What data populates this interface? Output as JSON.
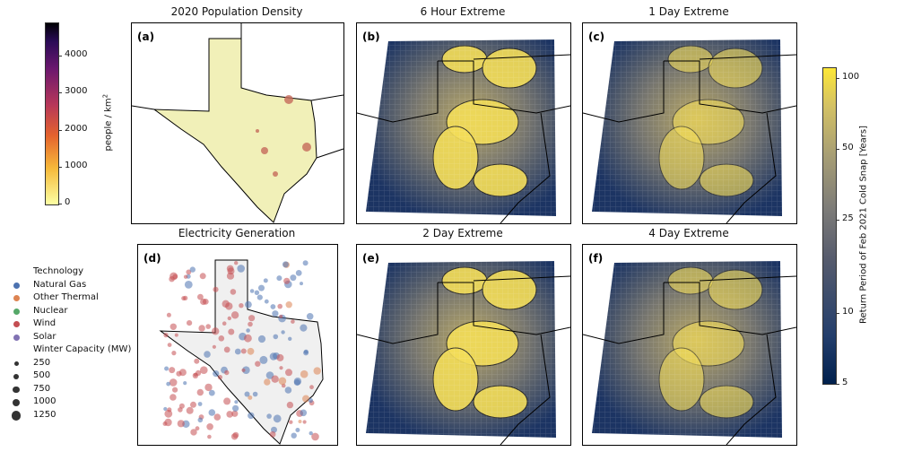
{
  "chart_data": {
    "type": "map",
    "panels": [
      {
        "id": "a",
        "label": "(a)",
        "title": "2020 Population Density"
      },
      {
        "id": "b",
        "label": "(b)",
        "title": "6 Hour Extreme"
      },
      {
        "id": "c",
        "label": "(c)",
        "title": "1 Day Extreme"
      },
      {
        "id": "d",
        "label": "(d)",
        "title": "Electricity Generation"
      },
      {
        "id": "e",
        "label": "(e)",
        "title": "2 Day Extreme"
      },
      {
        "id": "f",
        "label": "(f)",
        "title": "4 Day Extreme"
      }
    ],
    "population_colorbar": {
      "label": "people / km²",
      "label_text": "people / km",
      "label_sup": "2",
      "ticks": [
        "4000",
        "3000",
        "2000",
        "1000",
        "0"
      ],
      "range": [
        0,
        4900
      ]
    },
    "return_colorbar": {
      "label": "Return Period of Feb 2021 Cold Snap [Years]",
      "ticks": [
        "100",
        "50",
        "25",
        "10",
        "5"
      ],
      "scale": "log",
      "range": [
        5,
        110
      ]
    },
    "legend": {
      "technology_title": "Technology",
      "technologies": [
        {
          "name": "Natural Gas",
          "color": "#4c72b0"
        },
        {
          "name": "Other Thermal",
          "color": "#dd8452"
        },
        {
          "name": "Nuclear",
          "color": "#55a868"
        },
        {
          "name": "Wind",
          "color": "#c44e52"
        },
        {
          "name": "Solar",
          "color": "#8172b3"
        }
      ],
      "capacity_title": "Winter Capacity (MW)",
      "capacities": [
        "250",
        "500",
        "750",
        "1000",
        "1250"
      ]
    }
  }
}
